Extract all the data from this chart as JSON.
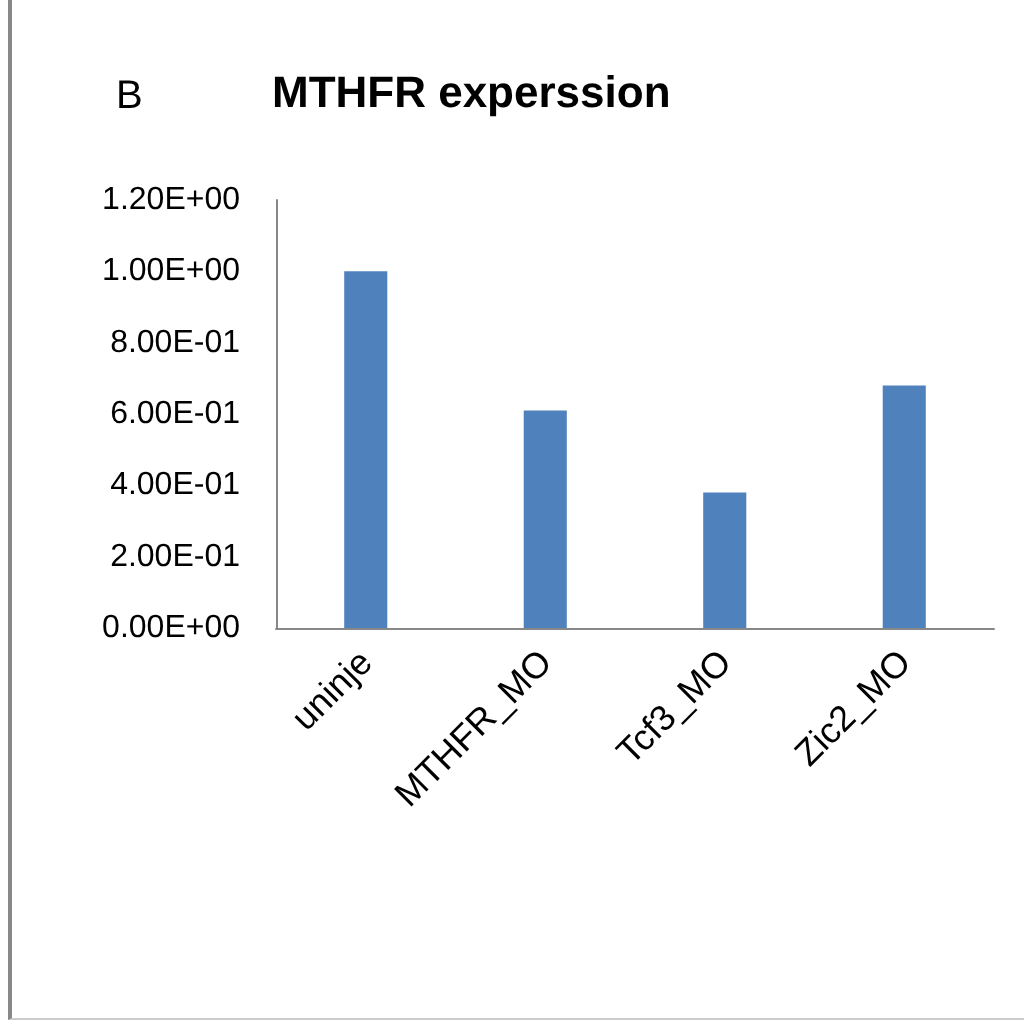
{
  "chart_data": {
    "type": "bar",
    "title": "MTHFR experssion",
    "annotations": [
      "B"
    ],
    "categories": [
      "uninje",
      "MTHFR_MO",
      "Tcf3_MO",
      "Zic2_MO"
    ],
    "values": [
      1.0,
      0.61,
      0.38,
      0.68
    ],
    "color": "#4f81bd",
    "ylim": [
      0,
      1.2
    ],
    "yticks": [
      {
        "value": 0,
        "label": "0.00E+00"
      },
      {
        "value": 0.2,
        "label": "2.00E-01"
      },
      {
        "value": 0.4,
        "label": "4.00E-01"
      },
      {
        "value": 0.6,
        "label": "6.00E-01"
      },
      {
        "value": 0.8,
        "label": "8.00E-01"
      },
      {
        "value": 1.0,
        "label": "1.00E+00"
      },
      {
        "value": 1.2,
        "label": "1.20E+00"
      }
    ],
    "grid": false
  }
}
